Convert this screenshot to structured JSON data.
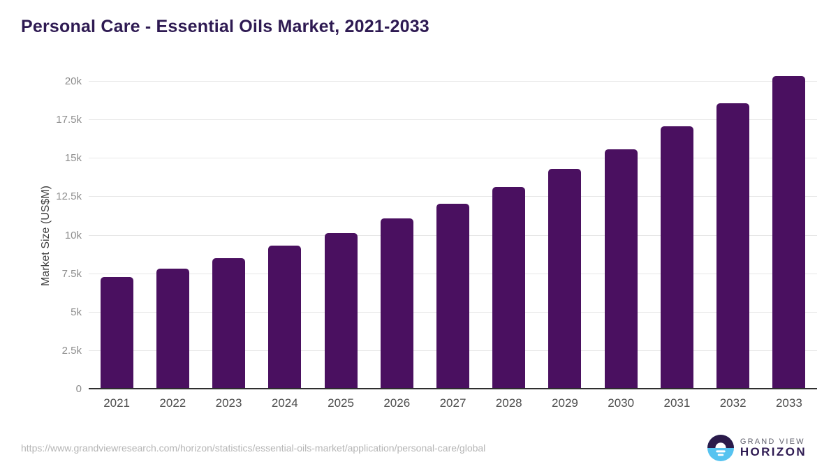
{
  "chart_data": {
    "type": "bar",
    "title": "Personal Care - Essential Oils Market, 2021-2033",
    "xlabel": "",
    "ylabel": "Market Size (US$M)",
    "categories": [
      "2021",
      "2022",
      "2023",
      "2024",
      "2025",
      "2026",
      "2027",
      "2028",
      "2029",
      "2030",
      "2031",
      "2032",
      "2033"
    ],
    "values": [
      7250,
      7800,
      8500,
      9300,
      10100,
      11050,
      12000,
      13100,
      14300,
      15550,
      17050,
      18550,
      20300
    ],
    "ylim": [
      0,
      20000
    ],
    "yticks": [
      0,
      2500,
      5000,
      7500,
      10000,
      12500,
      15000,
      17500,
      20000
    ],
    "ytick_labels": [
      "0",
      "2.5k",
      "5k",
      "7.5k",
      "10k",
      "12.5k",
      "15k",
      "17.5k",
      "20k"
    ],
    "grid": true,
    "legend": "none",
    "bar_color": "#4a1060"
  },
  "footer": {
    "source_url": "https://www.grandviewresearch.com/horizon/statistics/essential-oils-market/application/personal-care/global",
    "logo": {
      "top": "GRAND VIEW",
      "bottom": "HORIZON"
    }
  },
  "colors": {
    "title": "#2e1a52",
    "bar": "#4a1060",
    "gridline": "#e7e7e7",
    "axis_line": "#2f2f2f",
    "y_tick_label": "#8c8c8c",
    "x_tick_label": "#4d4d4d",
    "url_text": "#b5b5b5",
    "logo_dark": "#2b1a4a",
    "logo_blue": "#56c3f0"
  }
}
